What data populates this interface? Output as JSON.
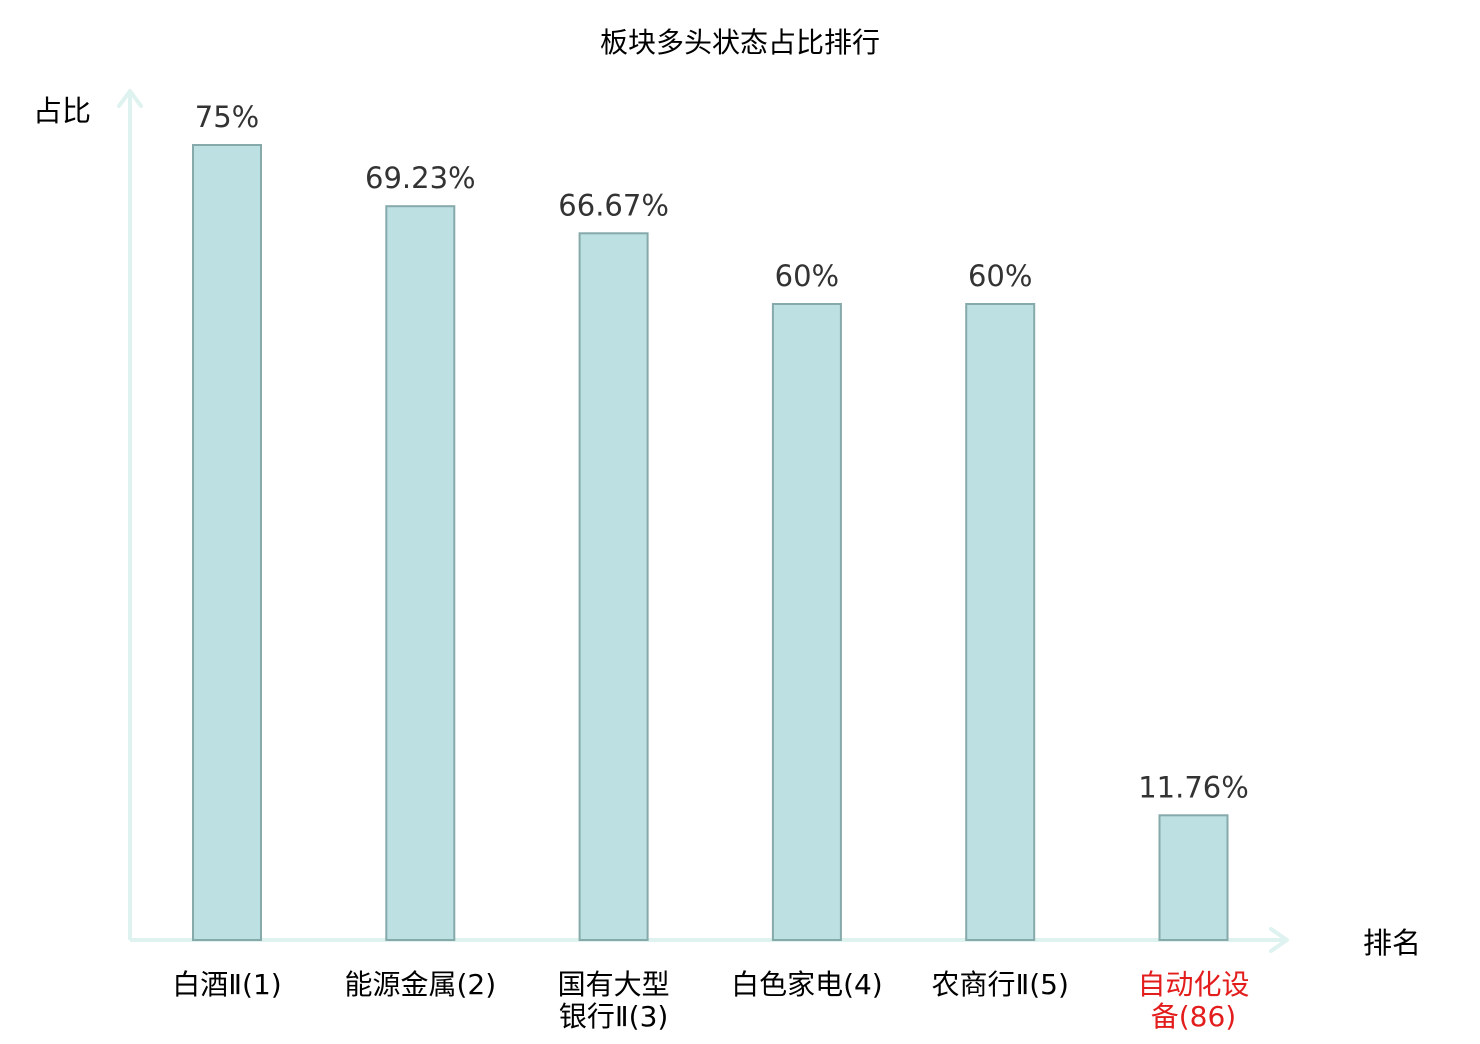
{
  "chart_data": {
    "type": "bar",
    "title": "板块多头状态占比排行",
    "ylabel": "占比",
    "xlabel": "排名",
    "ylim": [
      0,
      80
    ],
    "grid": false,
    "legend": "none",
    "categories": [
      {
        "lines": [
          "白酒Ⅱ(1)"
        ],
        "highlight": false
      },
      {
        "lines": [
          "能源金属(2)"
        ],
        "highlight": false
      },
      {
        "lines": [
          "国有大型",
          "银行Ⅱ(3)"
        ],
        "highlight": false
      },
      {
        "lines": [
          "白色家电(4)"
        ],
        "highlight": false
      },
      {
        "lines": [
          "农商行Ⅱ(5)"
        ],
        "highlight": false
      },
      {
        "lines": [
          "自动化设",
          "备(86)"
        ],
        "highlight": true
      }
    ],
    "values": [
      75,
      69.23,
      66.67,
      60,
      60,
      11.76
    ],
    "value_labels": [
      "75%",
      "69.23%",
      "66.67%",
      "60%",
      "60%",
      "11.76%"
    ],
    "colors": {
      "bar_fill": "#bde0e3",
      "bar_stroke": "#86a9aa",
      "axis": "#def2ef",
      "text": "#000000",
      "value_text": "#333333",
      "highlight": "#e31c1c"
    }
  }
}
